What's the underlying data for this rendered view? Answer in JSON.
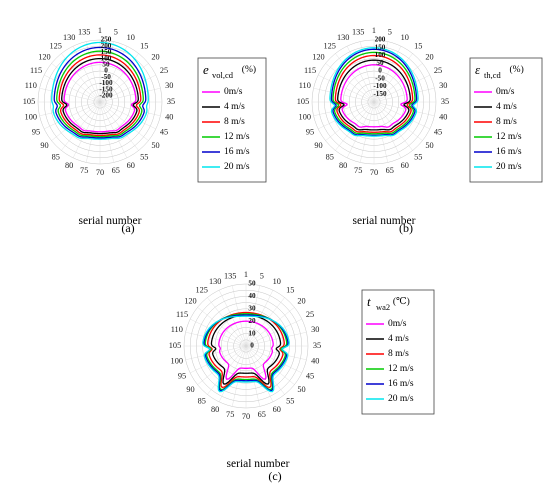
{
  "chart_data": [
    {
      "id": "a",
      "type": "polar-line",
      "panel_label": "(a)",
      "axis_label": "serial number",
      "angular_ticks": [
        1,
        5,
        10,
        15,
        20,
        25,
        30,
        35,
        40,
        45,
        50,
        55,
        60,
        65,
        70,
        75,
        80,
        85,
        90,
        95,
        100,
        105,
        110,
        115,
        120,
        125,
        130,
        135
      ],
      "radial_ticks": [
        250,
        200,
        150,
        100,
        50,
        0,
        -50,
        -100,
        -150,
        -200
      ],
      "radial_range": [
        -250,
        250
      ],
      "legend": {
        "title": "e",
        "subscript": "vol,cd",
        "unit": "(%)",
        "entries": [
          "0m/s",
          "4 m/s",
          "8 m/s",
          "12 m/s",
          "16 m/s",
          "20 m/s"
        ]
      },
      "series": [
        {
          "name": "0m/s",
          "color": "#ff00ff",
          "profile": {
            "front": 70,
            "side": 40,
            "back": -10,
            "spike": 10
          }
        },
        {
          "name": "4 m/s",
          "color": "#000000",
          "profile": {
            "front": 100,
            "side": 60,
            "back": 5,
            "spike": 25
          }
        },
        {
          "name": "8 m/s",
          "color": "#ff0000",
          "profile": {
            "front": 130,
            "side": 80,
            "back": 20,
            "spike": 50
          }
        },
        {
          "name": "12 m/s",
          "color": "#00cc00",
          "profile": {
            "front": 160,
            "side": 100,
            "back": 30,
            "spike": 75
          }
        },
        {
          "name": "16 m/s",
          "color": "#0000cc",
          "profile": {
            "front": 190,
            "side": 120,
            "back": 40,
            "spike": 100
          }
        },
        {
          "name": "20 m/s",
          "color": "#00e5ee",
          "profile": {
            "front": 230,
            "side": 140,
            "back": 50,
            "spike": 130
          }
        }
      ]
    },
    {
      "id": "b",
      "type": "polar-line",
      "panel_label": "(b)",
      "axis_label": "serial number",
      "angular_ticks": [
        1,
        5,
        10,
        15,
        20,
        25,
        30,
        35,
        40,
        45,
        50,
        55,
        60,
        65,
        70,
        75,
        80,
        85,
        90,
        95,
        100,
        105,
        110,
        115,
        120,
        125,
        130,
        135
      ],
      "radial_ticks": [
        200,
        150,
        100,
        50,
        0,
        -50,
        -100,
        -150
      ],
      "radial_range": [
        -200,
        200
      ],
      "legend": {
        "title": "ε",
        "subscript": "th,cd",
        "unit": "(%)",
        "entries": [
          "0m/s",
          "4 m/s",
          "8 m/s",
          "12 m/s",
          "16 m/s",
          "20 m/s"
        ]
      },
      "series": [
        {
          "name": "0m/s",
          "color": "#ff00ff",
          "profile": {
            "front": 40,
            "side": 15,
            "back": -40,
            "spike": -20
          }
        },
        {
          "name": "4 m/s",
          "color": "#000000",
          "profile": {
            "front": 70,
            "side": 35,
            "back": -20,
            "spike": 0
          }
        },
        {
          "name": "8 m/s",
          "color": "#ff0000",
          "profile": {
            "front": 100,
            "side": 50,
            "back": -5,
            "spike": 20
          }
        },
        {
          "name": "12 m/s",
          "color": "#00cc00",
          "profile": {
            "front": 120,
            "side": 65,
            "back": 5,
            "spike": 35
          }
        },
        {
          "name": "16 m/s",
          "color": "#0000cc",
          "profile": {
            "front": 140,
            "side": 75,
            "back": 15,
            "spike": 50
          }
        },
        {
          "name": "20 m/s",
          "color": "#00e5ee",
          "profile": {
            "front": 150,
            "side": 85,
            "back": 20,
            "spike": 60
          }
        }
      ]
    },
    {
      "id": "c",
      "type": "polar-line",
      "panel_label": "(c)",
      "axis_label": "serial number",
      "angular_ticks": [
        1,
        5,
        10,
        15,
        20,
        25,
        30,
        35,
        40,
        45,
        50,
        55,
        60,
        65,
        70,
        75,
        80,
        85,
        90,
        95,
        100,
        105,
        110,
        115,
        120,
        125,
        130,
        135
      ],
      "radial_ticks": [
        50,
        40,
        30,
        20,
        10,
        0
      ],
      "radial_range": [
        0,
        50
      ],
      "legend": {
        "title": "t",
        "subscript": "wa2",
        "unit": "(℃)",
        "entries": [
          "0m/s",
          "4 m/s",
          "8 m/s",
          "12 m/s",
          "16 m/s",
          "20 m/s"
        ]
      },
      "series": [
        {
          "name": "0m/s",
          "color": "#ff00ff",
          "profile": {
            "front": 20,
            "side": 22,
            "back": 18,
            "spike": 21
          }
        },
        {
          "name": "4 m/s",
          "color": "#000000",
          "profile": {
            "front": 25,
            "side": 28,
            "back": 22,
            "spike": 25
          }
        },
        {
          "name": "8 m/s",
          "color": "#ff0000",
          "profile": {
            "front": 27,
            "side": 31,
            "back": 25,
            "spike": 28
          }
        },
        {
          "name": "12 m/s",
          "color": "#00cc00",
          "profile": {
            "front": 26,
            "side": 33,
            "back": 27,
            "spike": 29
          }
        },
        {
          "name": "16 m/s",
          "color": "#0000cc",
          "profile": {
            "front": 25,
            "side": 34,
            "back": 28,
            "spike": 30
          }
        },
        {
          "name": "20 m/s",
          "color": "#00e5ee",
          "profile": {
            "front": 24,
            "side": 35,
            "back": 29,
            "spike": 30
          }
        }
      ]
    }
  ]
}
